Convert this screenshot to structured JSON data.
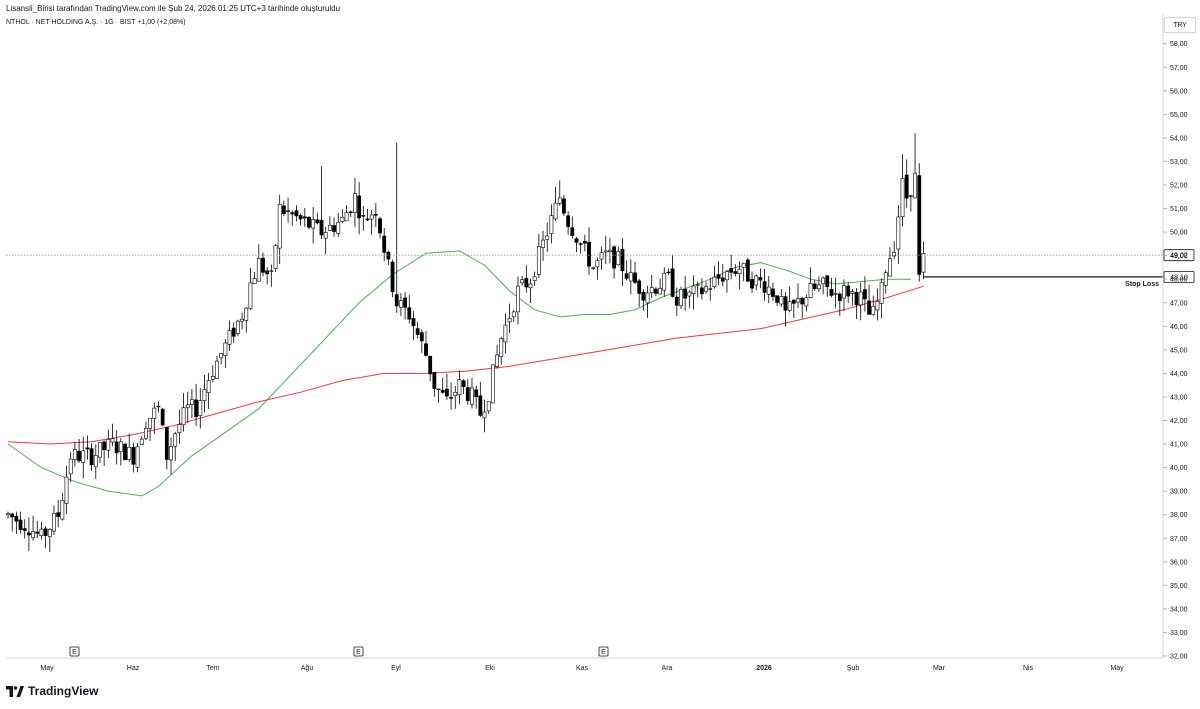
{
  "caption": "Lisansli_Birisi tarafından TradingView.com ile Şub 24, 2026 01:25 UTC+3 tarihinde oluşturuldu",
  "symbol": {
    "line": "NTHOL · NET HOLDİNG A.Ş. · 1G · BIST  +1,00 (+2,08%)"
  },
  "currency": "TRY",
  "brand": {
    "name": "TradingView",
    "icon": "tradingview-logo-icon"
  },
  "colors": {
    "up": "#ffffff",
    "down": "#000000",
    "outline": "#000000",
    "ma_short": "#4caf50",
    "ma_long": "#f23645",
    "grid": "#f0f3fa",
    "dotted": "#9598a1"
  },
  "chart_data": {
    "type": "candlestick",
    "ylim": [
      32,
      58.5
    ],
    "y_ticks": [
      "58,00",
      "57,00",
      "56,00",
      "55,00",
      "54,00",
      "53,00",
      "52,00",
      "51,00",
      "50,00",
      "49,00",
      "48,00",
      "47,00",
      "46,00",
      "45,00",
      "44,00",
      "43,00",
      "42,00",
      "41,00",
      "40,00",
      "39,00",
      "38,00",
      "37,00",
      "36,00",
      "35,00",
      "34,00",
      "33,00",
      "32,00"
    ],
    "x_ticks": [
      "May",
      "Haz",
      "Tem",
      "Ağu",
      "Eyl",
      "Eki",
      "Kas",
      "Ara",
      "2026",
      "Şub",
      "Mar",
      "Nis",
      "May"
    ],
    "price_labels": [
      {
        "label": "49,02",
        "value": 49.02,
        "style": "dotted"
      },
      {
        "label": "48,10",
        "value": 48.1,
        "style": "solid"
      }
    ],
    "annotation": {
      "text": "Stop Loss",
      "value": 48.1
    },
    "earnings_markers": [
      "E",
      "E",
      "E"
    ],
    "anchors": [
      [
        0,
        38
      ],
      [
        5,
        37.5
      ],
      [
        8,
        37
      ],
      [
        12,
        38
      ],
      [
        15,
        40.5
      ],
      [
        20,
        40.5
      ],
      [
        25,
        41
      ],
      [
        30,
        40.5
      ],
      [
        33,
        42
      ],
      [
        36,
        42.5
      ],
      [
        38,
        40.5
      ],
      [
        40,
        41.5
      ],
      [
        43,
        42.5
      ],
      [
        45,
        42.5
      ],
      [
        48,
        43.8
      ],
      [
        50,
        44.5
      ],
      [
        53,
        45.5
      ],
      [
        56,
        46.5
      ],
      [
        58,
        47.8
      ],
      [
        60,
        48.7
      ],
      [
        63,
        48
      ],
      [
        65,
        51
      ],
      [
        70,
        50.5
      ],
      [
        75,
        50
      ],
      [
        80,
        50.5
      ],
      [
        83,
        51.5
      ],
      [
        85,
        50.5
      ],
      [
        88,
        51
      ],
      [
        91,
        48.5
      ],
      [
        93,
        47
      ],
      [
        96,
        46.5
      ],
      [
        100,
        44.8
      ],
      [
        102,
        43.5
      ],
      [
        105,
        42.8
      ],
      [
        108,
        43.5
      ],
      [
        111,
        43
      ],
      [
        113,
        42.3
      ],
      [
        115,
        43.2
      ],
      [
        118,
        45.5
      ],
      [
        120,
        46.5
      ],
      [
        122,
        47.5
      ],
      [
        125,
        48
      ],
      [
        127,
        49
      ],
      [
        130,
        50.5
      ],
      [
        132,
        51.5
      ],
      [
        134,
        50.5
      ],
      [
        137,
        49.5
      ],
      [
        140,
        48.5
      ],
      [
        143,
        49
      ],
      [
        146,
        48.8
      ],
      [
        149,
        48
      ],
      [
        152,
        47.5
      ],
      [
        155,
        47.7
      ],
      [
        158,
        48
      ],
      [
        160,
        47.2
      ],
      [
        163,
        47.3
      ],
      [
        166,
        47.5
      ],
      [
        169,
        47.9
      ],
      [
        172,
        48.3
      ],
      [
        175,
        48.5
      ],
      [
        178,
        48
      ],
      [
        181,
        47.8
      ],
      [
        184,
        47.3
      ],
      [
        186,
        46.5
      ],
      [
        189,
        47
      ],
      [
        192,
        47.5
      ],
      [
        195,
        47.7
      ],
      [
        198,
        47.4
      ],
      [
        201,
        47.5
      ],
      [
        204,
        47.2
      ],
      [
        206,
        46.5
      ],
      [
        207,
        46.5
      ],
      [
        209,
        47.5
      ],
      [
        210,
        48.5
      ],
      [
        212,
        49.5
      ],
      [
        214,
        52
      ],
      [
        215,
        51.5
      ],
      [
        217,
        52.3
      ],
      [
        218,
        48.2
      ],
      [
        219,
        49.1
      ]
    ],
    "wicks": [
      [
        217,
        54.2,
        null
      ],
      [
        214,
        53.3,
        null
      ],
      [
        93,
        53.8,
        null
      ],
      [
        75,
        52.8,
        null
      ],
      [
        132,
        52.2,
        null
      ]
    ],
    "series": [
      {
        "name": "",
        "kind": "moving_average",
        "color": "#4caf50",
        "points": [
          [
            0,
            41
          ],
          [
            8,
            40
          ],
          [
            16,
            39.4
          ],
          [
            24,
            39
          ],
          [
            32,
            38.8
          ],
          [
            36,
            39.2
          ],
          [
            44,
            40.5
          ],
          [
            52,
            41.5
          ],
          [
            60,
            42.5
          ],
          [
            68,
            44
          ],
          [
            76,
            45.5
          ],
          [
            84,
            47
          ],
          [
            92,
            48.2
          ],
          [
            100,
            49.1
          ],
          [
            108,
            49.2
          ],
          [
            114,
            48.6
          ],
          [
            120,
            47.5
          ],
          [
            126,
            46.7
          ],
          [
            132,
            46.4
          ],
          [
            138,
            46.5
          ],
          [
            144,
            46.5
          ],
          [
            150,
            46.7
          ],
          [
            156,
            47.2
          ],
          [
            162,
            47.6
          ],
          [
            168,
            48
          ],
          [
            174,
            48.5
          ],
          [
            180,
            48.7
          ],
          [
            186,
            48.4
          ],
          [
            192,
            48
          ],
          [
            198,
            47.8
          ],
          [
            204,
            47.9
          ],
          [
            210,
            48
          ],
          [
            216,
            48
          ]
        ]
      },
      {
        "name": "",
        "kind": "moving_average",
        "color": "#f23645",
        "points": [
          [
            0,
            41.1
          ],
          [
            10,
            41
          ],
          [
            20,
            41.1
          ],
          [
            30,
            41.4
          ],
          [
            40,
            41.8
          ],
          [
            50,
            42.3
          ],
          [
            60,
            42.8
          ],
          [
            70,
            43.2
          ],
          [
            80,
            43.7
          ],
          [
            90,
            44
          ],
          [
            100,
            44
          ],
          [
            110,
            44.1
          ],
          [
            120,
            44.3
          ],
          [
            130,
            44.6
          ],
          [
            140,
            44.9
          ],
          [
            150,
            45.2
          ],
          [
            160,
            45.5
          ],
          [
            170,
            45.7
          ],
          [
            180,
            45.9
          ],
          [
            190,
            46.3
          ],
          [
            200,
            46.7
          ],
          [
            210,
            47.2
          ],
          [
            219,
            47.7
          ]
        ]
      }
    ]
  }
}
